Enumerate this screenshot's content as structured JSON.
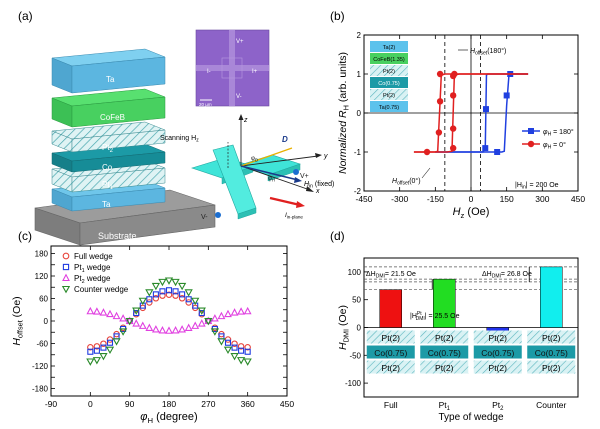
{
  "panels": {
    "a": {
      "label": "(a)",
      "stack_layers": [
        "Ta",
        "CoFeB",
        "Pt",
        "Co",
        "Pt",
        "Ta",
        "Substrate"
      ],
      "layer_subscripts": {
        "Pt2": "2",
        "Pt1": "1"
      },
      "micrograph": {
        "labels": {
          "vplus": "V+",
          "vminus": "V-",
          "iminus": "I-",
          "iplus": "I+"
        },
        "scalebar": "20 µm"
      },
      "device": {
        "scanning": "Scanning H",
        "scanning_sub": "z",
        "axis_z": "z",
        "axis_y": "y",
        "axis_x": "x",
        "d_label": "D",
        "phi_d": "φ",
        "phi_d_sub": "D",
        "phi_h": "φ",
        "phi_h_sub": "H",
        "vplus": "V+",
        "vminus": "V-",
        "hin": "H",
        "hin_sub": "in",
        "hin_note": " (fixed)",
        "iin": "I",
        "iin_sub": "in-plane"
      }
    },
    "b": {
      "label": "(b)",
      "inset_stack": [
        "Ta(2)",
        "CoFeB(1.35)",
        "Pt(2)",
        "Co(0.75)",
        "Pt(2)",
        "Ta(0.75)"
      ],
      "hoffset180_label": "H",
      "hoffset180_sub": "offset",
      "hoffset180_tail": "(180°)",
      "hoffset0_label": "H",
      "hoffset0_sub": "offset",
      "hoffset0_tail": "(0°)",
      "legend": [
        {
          "phi": "φ",
          "sub": "H",
          "value": " = 180°",
          "color": "#2040e0"
        },
        {
          "phi": "φ",
          "sub": "H",
          "value": " = 0°",
          "color": "#e02020"
        }
      ],
      "hin_note": "|H",
      "hin_note_sub": "in",
      "hin_note_tail": "| = 200 Oe"
    },
    "c": {
      "label": "(c)"
    },
    "d": {
      "label": "(d)",
      "dh1": "ΔH",
      "dh1_sub": "DMI",
      "dh1_tail": "= 21.5 Oe",
      "dh2": "ΔH",
      "dh2_sub": "DMI",
      "dh2_tail": "= 26.8 Oe",
      "hpt2": "|H",
      "hpt2_sup": "Pt",
      "hpt2_sub": "DMI",
      "hpt2_tail": "| = 25.5 Oe",
      "stack_rows": [
        [
          "Pt(2)",
          "Pt(2)",
          "Pt(2)",
          "Pt(2)"
        ],
        [
          "Co(0.75)",
          "Co(0.75)",
          "Co(0.75)",
          "Co(0.75)"
        ],
        [
          "Pt(2)",
          "Pt(2)",
          "Pt(2)",
          "Pt(2)"
        ]
      ]
    }
  },
  "chart_data": [
    {
      "type": "line",
      "panel": "b",
      "xlabel": "H",
      "xlabel_sub": "z",
      "xlabel_unit": " (Oe)",
      "ylabel": "Normalized R",
      "ylabel_sub": "H",
      "ylabel_unit": " (arb. units)",
      "xlim": [
        -450,
        450
      ],
      "ylim": [
        -2,
        2
      ],
      "xticks": [
        -450,
        -300,
        -150,
        0,
        150,
        300,
        450
      ],
      "yticks": [
        -2,
        -1,
        0,
        1,
        2
      ],
      "hoffset_lines": [
        -110,
        40
      ],
      "series": [
        {
          "name": "phi_H = 180",
          "color": "#2040e0",
          "marker": "square",
          "loops": [
            {
              "x": [
                -150,
                -100,
                -50,
                0,
                50,
                100,
                130,
                140,
                150,
                160,
                200,
                240
              ],
              "y": [
                -1,
                -1,
                -1,
                -1,
                -1,
                -1,
                -1,
                -0.98,
                0.2,
                1,
                1,
                1
              ]
            },
            {
              "x": [
                240,
                200,
                150,
                100,
                70,
                65,
                60,
                50,
                0,
                -100,
                -150
              ],
              "y": [
                1,
                1,
                1,
                1,
                1,
                0.97,
                -0.9,
                -1,
                -1,
                -1,
                -1
              ]
            }
          ],
          "markers": [
            [
              110,
              -1
            ],
            [
              150,
              0.45
            ],
            [
              165,
              1
            ],
            [
              63,
              0.1
            ],
            [
              60,
              -0.9
            ]
          ]
        },
        {
          "name": "phi_H = 0",
          "color": "#e02020",
          "marker": "circle",
          "loops": [
            {
              "x": [
                -240,
                -200,
                -150,
                -140,
                -130,
                -125,
                -110,
                -50,
                0,
                50,
                100,
                200,
                240
              ],
              "y": [
                -1,
                -1,
                -1,
                -0.98,
                0.3,
                0.97,
                1,
                1,
                1,
                1,
                1,
                1,
                1
              ]
            },
            {
              "x": [
                240,
                200,
                150,
                100,
                50,
                0,
                -50,
                -70,
                -75,
                -80,
                -100,
                -150,
                -240
              ],
              "y": [
                1,
                1,
                1,
                1,
                1,
                1,
                1,
                0.97,
                0,
                -0.98,
                -1,
                -1,
                -1
              ]
            }
          ],
          "markers": [
            [
              -185,
              -1
            ],
            [
              -135,
              -0.5
            ],
            [
              -130,
              0.3
            ],
            [
              -130,
              1
            ],
            [
              -75,
              0.95
            ],
            [
              -75,
              0.45
            ],
            [
              -75,
              -0.4
            ],
            [
              -75,
              -0.9
            ],
            [
              -70,
              1
            ]
          ]
        }
      ]
    },
    {
      "type": "scatter",
      "panel": "c",
      "xlabel": "φ",
      "xlabel_sub": "H",
      "xlabel_unit": " (degree)",
      "ylabel": "H",
      "ylabel_sub": "offset",
      "ylabel_unit": " (Oe)",
      "xlim": [
        -90,
        450
      ],
      "ylim": [
        -200,
        200
      ],
      "xticks": [
        -90,
        0,
        90,
        180,
        270,
        360,
        450
      ],
      "yticks": [
        -180,
        -150,
        -120,
        -90,
        -60,
        -30,
        0,
        30,
        60,
        90,
        120,
        150,
        180
      ],
      "ytick_labels": [
        "-180",
        "",
        "-120",
        "",
        "-60",
        "",
        "0",
        "",
        "60",
        "",
        "120",
        "",
        "180"
      ],
      "series": [
        {
          "name": "Full wedge",
          "color": "#e8453c",
          "marker": "circle",
          "A": 70,
          "C": 0
        },
        {
          "name": "Pt",
          "name_sub": "1",
          "name_tail": " wedge",
          "color": "#1f3be0",
          "marker": "square",
          "A": 82,
          "C": 0
        },
        {
          "name": "Pt",
          "name_sub": "2",
          "name_tail": " wedge",
          "color": "#e040e0",
          "marker": "triangle-up",
          "A": -26,
          "C": 0
        },
        {
          "name": "Counter wedge",
          "color": "#2a8a2a",
          "marker": "triangle-down",
          "A": 108,
          "C": 0
        }
      ],
      "x": [
        0,
        15,
        30,
        45,
        60,
        75,
        90,
        105,
        120,
        135,
        150,
        165,
        180,
        195,
        210,
        225,
        240,
        255,
        270,
        285,
        300,
        315,
        330,
        345,
        360
      ]
    },
    {
      "type": "bar",
      "panel": "d",
      "xlabel": "Type of wedge",
      "ylabel": "H",
      "ylabel_sub": "DMI",
      "ylabel_unit": " (Oe)",
      "ylim": [
        -125,
        125
      ],
      "yticks": [
        -100,
        -50,
        0,
        50,
        100
      ],
      "categories": [
        "Full",
        "Pt1",
        "Pt2",
        "Counter"
      ],
      "category_labels": [
        {
          "t": "Full",
          "s": ""
        },
        {
          "t": "Pt",
          "s": "1"
        },
        {
          "t": "Pt",
          "s": "2"
        },
        {
          "t": "Counter",
          "s": ""
        }
      ],
      "values": [
        68,
        87,
        -25,
        109
      ],
      "colors": [
        "#ee1111",
        "#22dd22",
        "#2233ee",
        "#11eeee"
      ],
      "ref_lines": [
        109,
        87,
        82,
        68
      ]
    }
  ]
}
